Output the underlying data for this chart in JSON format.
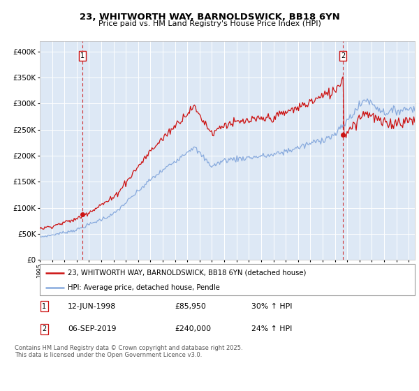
{
  "title": "23, WHITWORTH WAY, BARNOLDSWICK, BB18 6YN",
  "subtitle": "Price paid vs. HM Land Registry's House Price Index (HPI)",
  "sale1_date": "12-JUN-1998",
  "sale1_price": 85950,
  "sale1_label": "30% ↑ HPI",
  "sale1_year_f": 1998.458,
  "sale2_date": "06-SEP-2019",
  "sale2_price": 240000,
  "sale2_label": "24% ↑ HPI",
  "sale2_year_f": 2019.667,
  "legend_line1": "23, WHITWORTH WAY, BARNOLDSWICK, BB18 6YN (detached house)",
  "legend_line2": "HPI: Average price, detached house, Pendle",
  "footer": "Contains HM Land Registry data © Crown copyright and database right 2025.\nThis data is licensed under the Open Government Licence v3.0.",
  "hpi_color": "#88aadd",
  "price_color": "#cc1111",
  "background_color": "#dde8f5",
  "sale_marker_color": "#cc1111",
  "grid_color": "#ffffff",
  "ylim_max": 420000,
  "ylim_min": 0,
  "xlim_min": 1995,
  "xlim_max": 2025.5
}
